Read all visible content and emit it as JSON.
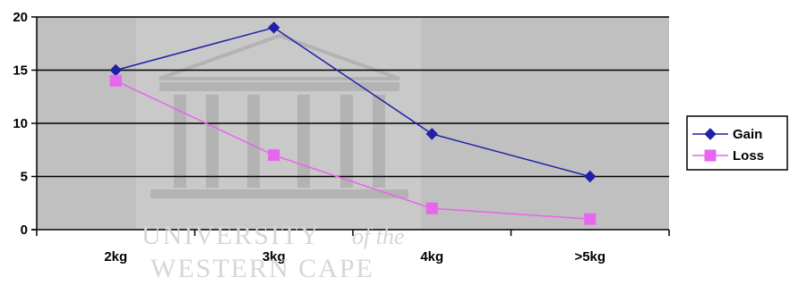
{
  "chart_data": {
    "type": "line",
    "categories": [
      "2kg",
      "3kg",
      "4kg",
      ">5kg"
    ],
    "series": [
      {
        "name": "Gain",
        "values": [
          15,
          19,
          9,
          5
        ],
        "color": "#1f1fa8",
        "marker": "diamond"
      },
      {
        "name": "Loss",
        "values": [
          14,
          7,
          2,
          1
        ],
        "color": "#e666ee",
        "marker": "square"
      }
    ],
    "title": "",
    "xlabel": "",
    "ylabel": "",
    "ylim": [
      0,
      20
    ],
    "yticks": [
      "0",
      "5",
      "10",
      "15",
      "20"
    ],
    "grid": true,
    "legend_position": "right",
    "plot_background": "#c0c0c0"
  },
  "watermark": {
    "line1_main": "UNIVERSITY",
    "line1_italic": "of the",
    "line2": "WESTERN CAPE"
  }
}
